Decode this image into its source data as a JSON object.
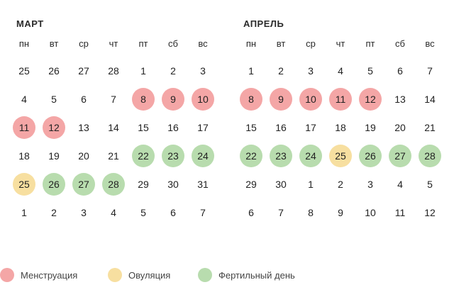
{
  "weekdays": [
    "пн",
    "вт",
    "ср",
    "чт",
    "пт",
    "сб",
    "вс"
  ],
  "colors": {
    "m": "#f4a6a6",
    "o": "#f7dfa0",
    "f": "#b8dcae"
  },
  "calendars": [
    {
      "title": "МАРТ",
      "days": [
        {
          "n": "25",
          "s": ""
        },
        {
          "n": "26",
          "s": ""
        },
        {
          "n": "27",
          "s": ""
        },
        {
          "n": "28",
          "s": ""
        },
        {
          "n": "1",
          "s": ""
        },
        {
          "n": "2",
          "s": ""
        },
        {
          "n": "3",
          "s": ""
        },
        {
          "n": "4",
          "s": ""
        },
        {
          "n": "5",
          "s": ""
        },
        {
          "n": "6",
          "s": ""
        },
        {
          "n": "7",
          "s": ""
        },
        {
          "n": "8",
          "s": "m"
        },
        {
          "n": "9",
          "s": "m"
        },
        {
          "n": "10",
          "s": "m"
        },
        {
          "n": "11",
          "s": "m"
        },
        {
          "n": "12",
          "s": "m"
        },
        {
          "n": "13",
          "s": ""
        },
        {
          "n": "14",
          "s": ""
        },
        {
          "n": "15",
          "s": ""
        },
        {
          "n": "16",
          "s": ""
        },
        {
          "n": "17",
          "s": ""
        },
        {
          "n": "18",
          "s": ""
        },
        {
          "n": "19",
          "s": ""
        },
        {
          "n": "20",
          "s": ""
        },
        {
          "n": "21",
          "s": ""
        },
        {
          "n": "22",
          "s": "f"
        },
        {
          "n": "23",
          "s": "f"
        },
        {
          "n": "24",
          "s": "f"
        },
        {
          "n": "25",
          "s": "o"
        },
        {
          "n": "26",
          "s": "f"
        },
        {
          "n": "27",
          "s": "f"
        },
        {
          "n": "28",
          "s": "f"
        },
        {
          "n": "29",
          "s": ""
        },
        {
          "n": "30",
          "s": ""
        },
        {
          "n": "31",
          "s": ""
        },
        {
          "n": "1",
          "s": ""
        },
        {
          "n": "2",
          "s": ""
        },
        {
          "n": "3",
          "s": ""
        },
        {
          "n": "4",
          "s": ""
        },
        {
          "n": "5",
          "s": ""
        },
        {
          "n": "6",
          "s": ""
        },
        {
          "n": "7",
          "s": ""
        }
      ]
    },
    {
      "title": "АПРЕЛЬ",
      "days": [
        {
          "n": "1",
          "s": ""
        },
        {
          "n": "2",
          "s": ""
        },
        {
          "n": "3",
          "s": ""
        },
        {
          "n": "4",
          "s": ""
        },
        {
          "n": "5",
          "s": ""
        },
        {
          "n": "6",
          "s": ""
        },
        {
          "n": "7",
          "s": ""
        },
        {
          "n": "8",
          "s": "m"
        },
        {
          "n": "9",
          "s": "m"
        },
        {
          "n": "10",
          "s": "m"
        },
        {
          "n": "11",
          "s": "m"
        },
        {
          "n": "12",
          "s": "m"
        },
        {
          "n": "13",
          "s": ""
        },
        {
          "n": "14",
          "s": ""
        },
        {
          "n": "15",
          "s": ""
        },
        {
          "n": "16",
          "s": ""
        },
        {
          "n": "17",
          "s": ""
        },
        {
          "n": "18",
          "s": ""
        },
        {
          "n": "19",
          "s": ""
        },
        {
          "n": "20",
          "s": ""
        },
        {
          "n": "21",
          "s": ""
        },
        {
          "n": "22",
          "s": "f"
        },
        {
          "n": "23",
          "s": "f"
        },
        {
          "n": "24",
          "s": "f"
        },
        {
          "n": "25",
          "s": "o"
        },
        {
          "n": "26",
          "s": "f"
        },
        {
          "n": "27",
          "s": "f"
        },
        {
          "n": "28",
          "s": "f"
        },
        {
          "n": "29",
          "s": ""
        },
        {
          "n": "30",
          "s": ""
        },
        {
          "n": "1",
          "s": ""
        },
        {
          "n": "2",
          "s": ""
        },
        {
          "n": "3",
          "s": ""
        },
        {
          "n": "4",
          "s": ""
        },
        {
          "n": "5",
          "s": ""
        },
        {
          "n": "6",
          "s": ""
        },
        {
          "n": "7",
          "s": ""
        },
        {
          "n": "8",
          "s": ""
        },
        {
          "n": "9",
          "s": ""
        },
        {
          "n": "10",
          "s": ""
        },
        {
          "n": "11",
          "s": ""
        },
        {
          "n": "12",
          "s": ""
        }
      ]
    }
  ],
  "legend": {
    "menstruation": "Менструация",
    "ovulation": "Овуляция",
    "fertile": "Фертильный день"
  }
}
